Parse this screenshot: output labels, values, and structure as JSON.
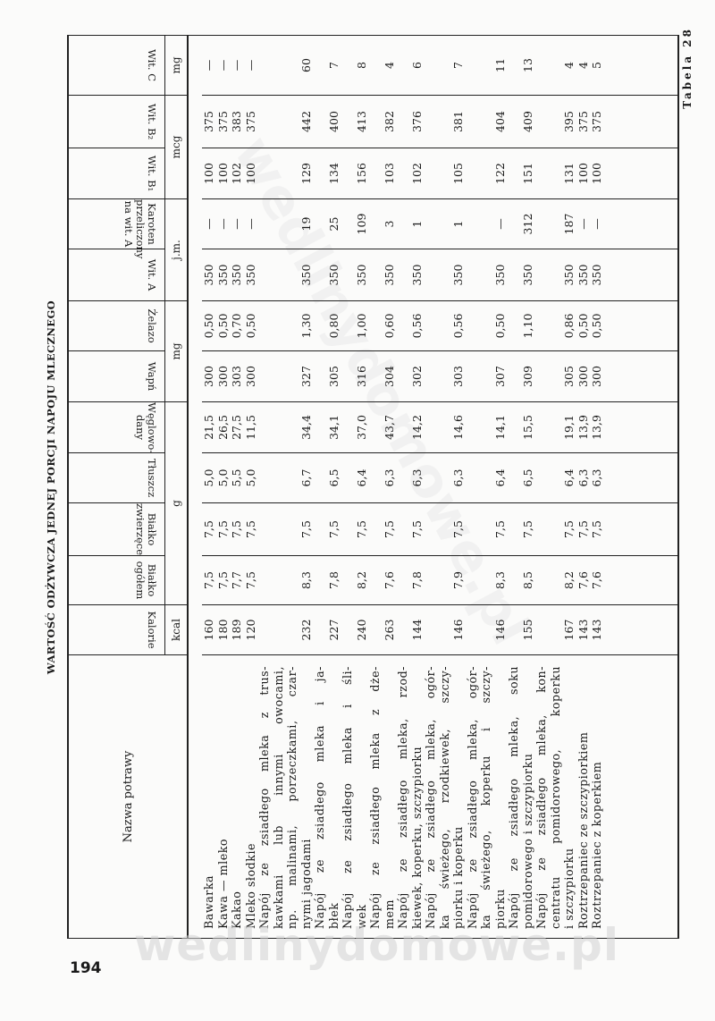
{
  "page": {
    "title": "WARTOŚĆ ODŻYWCZA JEDNEJ PORCJI NAPOJU MLECZNEGO",
    "table_number": "Tabela 28",
    "page_number": "194",
    "watermark": "wedlinydomowe.pl"
  },
  "table": {
    "name_header": "Nazwa potrawy",
    "columns": [
      {
        "label": [
          "Kalorie"
        ]
      },
      {
        "label": [
          "Białko",
          "ogółem"
        ]
      },
      {
        "label": [
          "Białko",
          "zwierzęce"
        ]
      },
      {
        "label": [
          "Tłuszcz"
        ]
      },
      {
        "label": [
          "Węglowo-",
          "dany"
        ]
      },
      {
        "label": [
          "Wapń"
        ]
      },
      {
        "label": [
          "Żelazo"
        ]
      },
      {
        "label": [
          "Wit. A"
        ]
      },
      {
        "label": [
          "Karoten",
          "przeliczony",
          "na wit. A"
        ]
      },
      {
        "label": [
          "Wit. B₁"
        ]
      },
      {
        "label": [
          "Wit. B₂"
        ]
      },
      {
        "label": [
          "Wit. C"
        ]
      }
    ],
    "units": [
      {
        "unit": "kcal",
        "span": 1
      },
      {
        "unit": "g",
        "span": 4
      },
      {
        "unit": "mg",
        "span": 2
      },
      {
        "unit": "j.m.",
        "span": 2
      },
      {
        "unit": "mcg",
        "span": 2
      },
      {
        "unit": "mg",
        "span": 1
      }
    ],
    "rows": [
      {
        "name": [
          "Bawarka"
        ],
        "values": [
          "160",
          "7,5",
          "7,5",
          "5,0",
          "21,5",
          "300",
          "0,50",
          "350",
          "—",
          "100",
          "375",
          "—"
        ]
      },
      {
        "name": [
          "Kawa — mleko"
        ],
        "values": [
          "180",
          "7,5",
          "7,5",
          "5,0",
          "26,5",
          "300",
          "0,50",
          "350",
          "—",
          "100",
          "375",
          "—"
        ]
      },
      {
        "name": [
          "Kakao"
        ],
        "values": [
          "189",
          "7,7",
          "7,5",
          "5,5",
          "27,5",
          "303",
          "0,70",
          "350",
          "—",
          "102",
          "383",
          "—"
        ]
      },
      {
        "name": [
          "Mleko słodkie"
        ],
        "values": [
          "120",
          "7,5",
          "7,5",
          "5,0",
          "11,5",
          "300",
          "0,50",
          "350",
          "—",
          "100",
          "375",
          "—"
        ]
      },
      {
        "name": [
          "Napój ze zsiadłego mleka z trus-",
          "kawkami lub innymi owocami,",
          "np. malinami, porzeczkami, czar-",
          "nymi jagodami"
        ],
        "values": [
          "232",
          "8,3",
          "7,5",
          "6,7",
          "34,4",
          "327",
          "1,30",
          "350",
          "19",
          "129",
          "442",
          "60"
        ]
      },
      {
        "name": [
          "Napój ze zsiadłego mleka i ja-",
          "błek"
        ],
        "values": [
          "227",
          "7,8",
          "7,5",
          "6,5",
          "34,1",
          "305",
          "0,80",
          "350",
          "25",
          "134",
          "400",
          "7"
        ]
      },
      {
        "name": [
          "Napój ze zsiadłego mleka i śli-",
          "wek"
        ],
        "values": [
          "240",
          "8,2",
          "7,5",
          "6,4",
          "37,0",
          "316",
          "1,00",
          "350",
          "109",
          "156",
          "413",
          "8"
        ]
      },
      {
        "name": [
          "Napój ze zsiadłego mleka z dże-",
          "mem"
        ],
        "values": [
          "263",
          "7,6",
          "7,5",
          "6,3",
          "43,7",
          "304",
          "0,60",
          "350",
          "3",
          "103",
          "382",
          "4"
        ]
      },
      {
        "name": [
          "Napój ze zsiadłego mleka, rzod-",
          "kiewek, koperku, szczypiorku"
        ],
        "values": [
          "144",
          "7,8",
          "7,5",
          "6,3",
          "14,2",
          "302",
          "0,56",
          "350",
          "1",
          "102",
          "376",
          "6"
        ]
      },
      {
        "name": [
          "Napój ze zsiadłego mleka, ogór-",
          "ka świeżego, rzodkiewek, szczy-",
          "piorku i koperku"
        ],
        "values": [
          "146",
          "7,9",
          "7,5",
          "6,3",
          "14,6",
          "303",
          "0,56",
          "350",
          "1",
          "105",
          "381",
          "7"
        ]
      },
      {
        "name": [
          "Napój ze zsiadłego mleka, ogór-",
          "ka świeżego, koperku i szczy-",
          "piorku"
        ],
        "values": [
          "146",
          "8,3",
          "7,5",
          "6,4",
          "14,1",
          "307",
          "0,50",
          "350",
          "—",
          "122",
          "404",
          "11"
        ]
      },
      {
        "name": [
          "Napój ze zsiadłego mleka, soku",
          "pomidorowego i szczypiorku"
        ],
        "values": [
          "155",
          "8,5",
          "7,5",
          "6,5",
          "15,5",
          "309",
          "1,10",
          "350",
          "312",
          "151",
          "409",
          "13"
        ]
      },
      {
        "name": [
          "Napój ze zsiadłego mleka, kon-",
          "centratu pomidorowego, koperku",
          "i szczypiorku"
        ],
        "values": [
          "167",
          "8,2",
          "7,5",
          "6,4",
          "19,1",
          "305",
          "0,86",
          "350",
          "187",
          "131",
          "395",
          "4"
        ]
      },
      {
        "name": [
          "Roztrzepaniec ze szczypiorkiem"
        ],
        "values": [
          "143",
          "7,6",
          "7,5",
          "6,3",
          "13,9",
          "300",
          "0,50",
          "350",
          "—",
          "100",
          "375",
          "4"
        ]
      },
      {
        "name": [
          "Roztrzepaniec z koperkiem"
        ],
        "values": [
          "143",
          "7,6",
          "7,5",
          "6,3",
          "13,9",
          "300",
          "0,50",
          "350",
          "—",
          "100",
          "375",
          "5"
        ]
      }
    ]
  }
}
